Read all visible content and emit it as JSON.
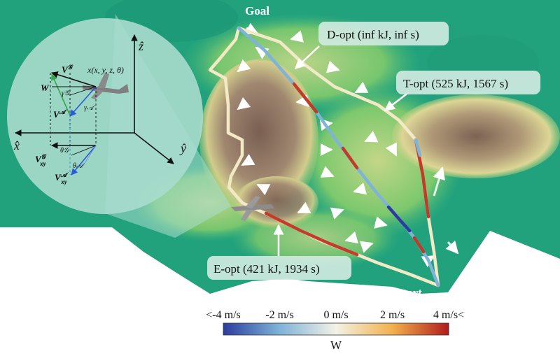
{
  "markers": {
    "goal": "Goal",
    "start": "Start"
  },
  "paths": [
    {
      "label": "D-opt (inf kJ, inf s)"
    },
    {
      "label": "T-opt (525 kJ, 1567 s)"
    },
    {
      "label": "E-opt (421 kJ, 1934 s)"
    }
  ],
  "inset": {
    "axes": {
      "x": "x̂",
      "y": "ŷ",
      "z": "ẑ"
    },
    "position": "x(x, y, z, θ)",
    "vectors": {
      "wind": "W",
      "ground": "V",
      "ground_sup": "𝒢",
      "air": "V",
      "air_sup": "𝒜",
      "ground_xy": "V",
      "ground_xy_sup": "𝒢",
      "ground_xy_sub": "xy",
      "air_xy": "V",
      "air_xy_sup": "𝒜",
      "air_xy_sub": "xy"
    },
    "angles": {
      "gamma_g": "γ𝒢",
      "gamma_a": "γ𝒜",
      "theta_g": "θ𝒢",
      "theta_a": "θ𝒜"
    }
  },
  "colorbar": {
    "ticks": [
      "<-4 m/s",
      "-2 m/s",
      "0 m/s",
      "2 m/s",
      "4 m/s<"
    ],
    "values": [
      -4,
      -2,
      0,
      2,
      4
    ],
    "range": [
      -4,
      4
    ],
    "label": "W",
    "colors": [
      "#2b3c9e",
      "#7fb3d8",
      "#f2f2e6",
      "#f2b14d",
      "#b01c1c"
    ]
  },
  "colors": {
    "terrain_green": "#1fa07a",
    "terrain_yellow": "#d9d58a",
    "terrain_brown": "#8a6a55",
    "path_cream": "#f2e9c6",
    "inset_fill": "#a9dccd",
    "callout_fill": "#cfe9df"
  }
}
